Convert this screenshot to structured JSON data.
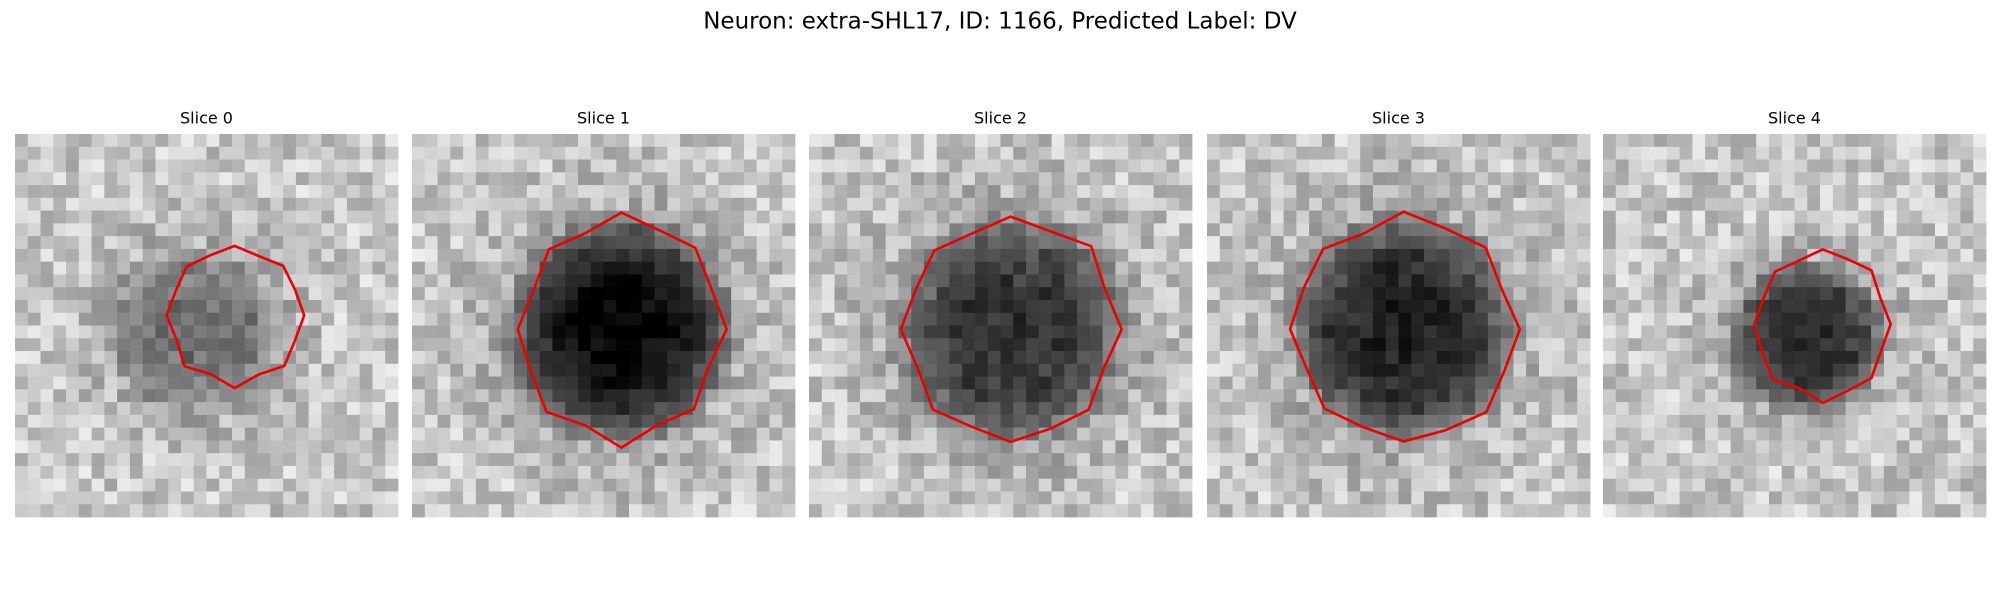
{
  "figure": {
    "title": "Neuron: extra-SHL17, ID: 1166, Predicted Label: DV",
    "panels": [
      {
        "title": "Slice 0"
      },
      {
        "title": "Slice 1"
      },
      {
        "title": "Slice 2"
      },
      {
        "title": "Slice 3"
      },
      {
        "title": "Slice 4"
      }
    ]
  }
}
